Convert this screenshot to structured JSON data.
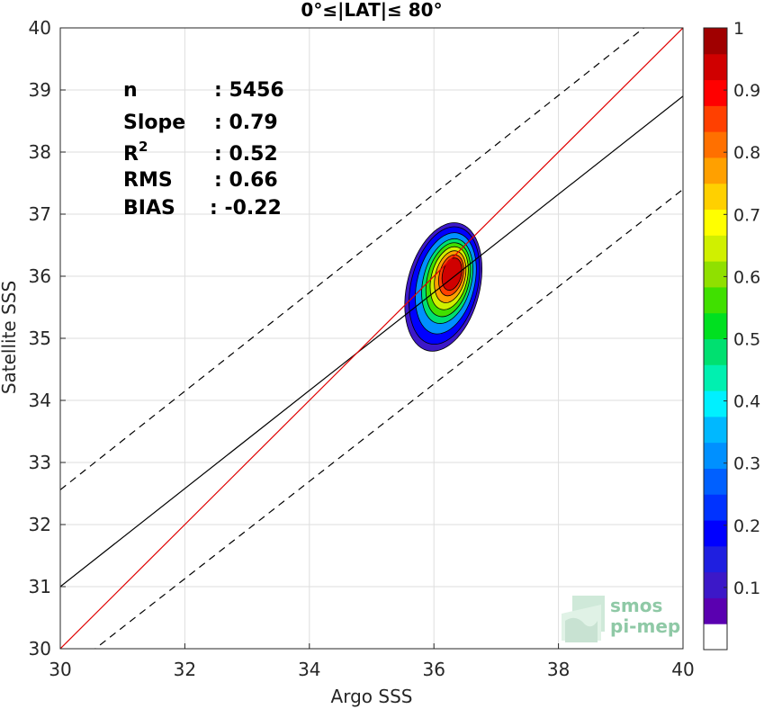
{
  "chart_data": {
    "type": "heatmap",
    "title": "0°≤|LAT|≤ 80°",
    "xlabel": "Argo SSS",
    "ylabel": "Satellite SSS",
    "xlim": [
      30,
      40
    ],
    "ylim": [
      30,
      40
    ],
    "xticks": [
      "30",
      "32",
      "34",
      "36",
      "38",
      "40"
    ],
    "yticks": [
      "30",
      "31",
      "32",
      "33",
      "34",
      "35",
      "36",
      "37",
      "38",
      "39",
      "40"
    ],
    "grid": true,
    "stats": [
      {
        "label": "n",
        "value": ": 5456"
      },
      {
        "label": "Slope",
        "value": ": 0.79"
      },
      {
        "label": "R",
        "sup": "2",
        "value": ": 0.52"
      },
      {
        "label": "RMS",
        "value": ": 0.66"
      },
      {
        "label": "BIAS",
        "value": ": -0.22"
      }
    ],
    "lines": {
      "identity": {
        "color": "#e00000",
        "x": [
          30,
          40
        ],
        "y": [
          30,
          40
        ]
      },
      "fit": {
        "color": "#000000",
        "x": [
          30,
          40
        ],
        "y": [
          31.0,
          38.9
        ]
      },
      "upper_band": {
        "color": "#000000",
        "style": "dashed",
        "x": [
          30,
          40
        ],
        "y": [
          32.56,
          40.5
        ]
      },
      "lower_band": {
        "color": "#000000",
        "style": "dashed",
        "x": [
          30,
          40
        ],
        "y": [
          29.56,
          37.4
        ]
      }
    },
    "density_center": {
      "x": 36.3,
      "y": 36.05
    },
    "contour_levels": [
      0.05,
      0.15,
      0.3,
      0.45,
      0.55,
      0.65,
      0.75,
      0.85,
      0.93
    ],
    "colorbar": {
      "range": [
        0,
        1
      ],
      "ticks": [
        "0.1",
        "0.2",
        "0.3",
        "0.4",
        "0.5",
        "0.6",
        "0.7",
        "0.8",
        "0.9",
        "1"
      ],
      "colors": [
        "#ffffff",
        "#5a00b0",
        "#3c18c8",
        "#1f1fe0",
        "#0000ff",
        "#0033ff",
        "#0060ff",
        "#0090ff",
        "#00b8ff",
        "#00f0ff",
        "#00f0b0",
        "#00e070",
        "#00e020",
        "#40e000",
        "#90e000",
        "#d0f000",
        "#ffff00",
        "#ffd000",
        "#ffa000",
        "#ff7000",
        "#ff4000",
        "#ff0000",
        "#d00000",
        "#a00000"
      ]
    }
  },
  "logo": {
    "line1": "smos",
    "line2": "pi-mep"
  }
}
